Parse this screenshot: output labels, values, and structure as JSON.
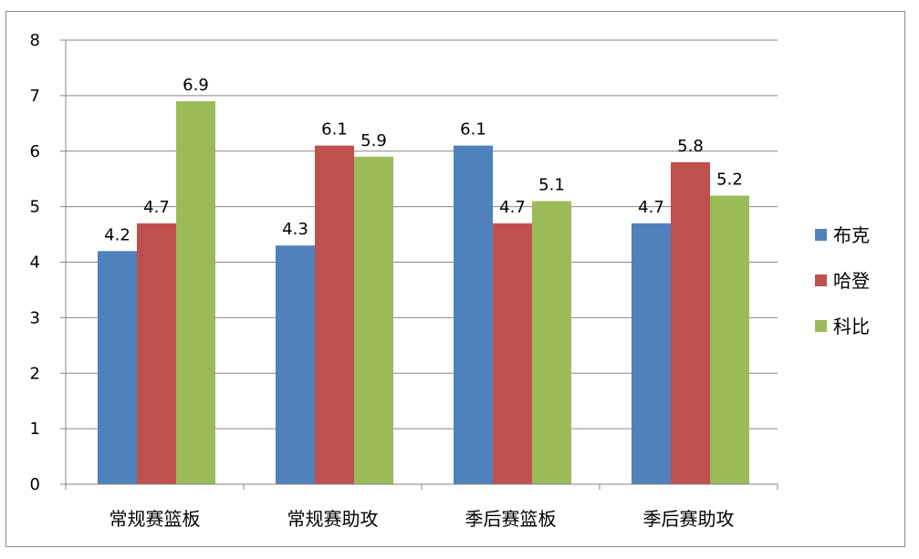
{
  "chart_data": {
    "type": "bar",
    "categories": [
      "常规赛篮板",
      "常规赛助攻",
      "季后赛篮板",
      "季后赛助攻"
    ],
    "series": [
      {
        "name": "布克",
        "color": "#4f81bd",
        "values": [
          4.2,
          4.3,
          6.1,
          4.7
        ]
      },
      {
        "name": "哈登",
        "color": "#c0504d",
        "values": [
          4.7,
          6.1,
          4.7,
          5.8
        ]
      },
      {
        "name": "科比",
        "color": "#9bbb59",
        "values": [
          6.9,
          5.9,
          5.1,
          5.2
        ]
      }
    ],
    "ylim": [
      0,
      8
    ],
    "yticks": [
      "0",
      "1",
      "2",
      "3",
      "4",
      "5",
      "6",
      "7",
      "8"
    ],
    "grid": true,
    "legend_position": "right"
  }
}
